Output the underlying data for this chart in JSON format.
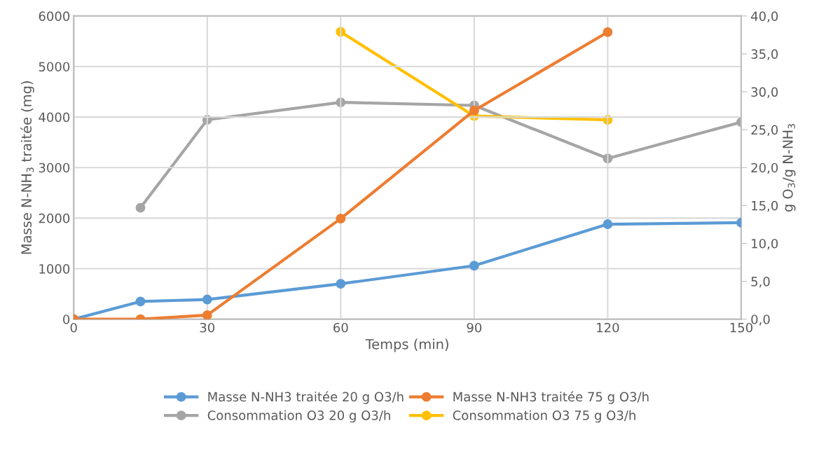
{
  "chart_data": {
    "type": "line",
    "xlabel": "Temps (min)",
    "ylabel": "Masse N-NH$_{3}$ traitée (mg)",
    "y2label": "g O$_{3}$/g N-NH$_{3}$",
    "x": [
      0,
      15,
      30,
      60,
      90,
      120,
      150
    ],
    "xlim": [
      0,
      150
    ],
    "xticks": [
      0,
      30,
      60,
      90,
      120,
      150
    ],
    "ylim": [
      0,
      6000
    ],
    "yticks": [
      0,
      1000,
      2000,
      3000,
      4000,
      5000,
      6000
    ],
    "y2lim": [
      0,
      40
    ],
    "y2ticks": [
      {
        "value": 0,
        "label": "0,0"
      },
      {
        "value": 5,
        "label": "5,0"
      },
      {
        "value": 10,
        "label": "10,0"
      },
      {
        "value": 15,
        "label": "15,0"
      },
      {
        "value": 20,
        "label": "20,0"
      },
      {
        "value": 25,
        "label": "25,0"
      },
      {
        "value": 30,
        "label": "30,0"
      },
      {
        "value": 35,
        "label": "35,0"
      },
      {
        "value": 40,
        "label": "40,0"
      }
    ],
    "grid": true,
    "legend": "bottom",
    "marker": "circle",
    "line_style": "solid",
    "series": [
      {
        "name": "Masse N-NH3 traitée 20 g O3/h",
        "color": "#5b9bd5",
        "values": [
          0,
          350,
          390,
          700,
          1060,
          1880,
          1910
        ]
      },
      {
        "name": "Masse N-NH3 traitée 75 g O3/h",
        "color": "#ed7d31",
        "values": [
          0,
          0,
          80,
          1990,
          4130,
          5680,
          null
        ]
      },
      {
        "name": "Consommation O3 20 g O3/h",
        "color": "#a5a5a5",
        "axis": "y2",
        "values": [
          null,
          14.7,
          26.3,
          28.6,
          28.2,
          21.2,
          26.0
        ]
      },
      {
        "name": "Consommation O3 75 g O3/h",
        "color": "#ffc000",
        "axis": "y2",
        "values": [
          null,
          null,
          null,
          37.9,
          26.8,
          26.3,
          null
        ]
      }
    ]
  }
}
